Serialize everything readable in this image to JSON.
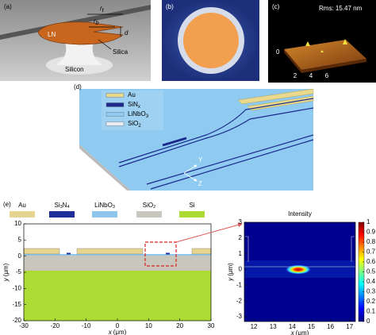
{
  "panels": {
    "a": {
      "label": "(a)",
      "top_radius": {
        "symbol": "r",
        "sub": "t"
      },
      "bottom_radius": {
        "symbol": "r",
        "sub": "b"
      },
      "thickness": "d",
      "disk": "LN",
      "pillar": "Silica",
      "substrate": "Silicon"
    },
    "b": {
      "label": "(b)"
    },
    "c": {
      "label": "(c)",
      "rms": "Rms: 15.47 nm",
      "xticks": [
        2,
        4,
        6
      ],
      "zticks": [
        0
      ]
    },
    "d": {
      "label": "(d)",
      "legend": [
        {
          "name": "Au",
          "color": "#e9d98c"
        },
        {
          "name": "SiN",
          "sub": "x",
          "color": "#1b2a8c"
        },
        {
          "name": "LiNbO",
          "sub": "3",
          "color": "#8fcaf0"
        },
        {
          "name": "SiO",
          "sub": "2",
          "color": "#e6ecf2"
        }
      ],
      "axes": [
        "Y",
        "Z"
      ]
    },
    "e": {
      "label": "(e)",
      "legend": [
        {
          "name": "Au",
          "color": "#e6d58e"
        },
        {
          "name": "Si",
          "sub": "3",
          "name2": "N",
          "sub2": "4",
          "color": "#1f2f99"
        },
        {
          "name": "LiNbO",
          "sub": "3",
          "color": "#8fc6ec"
        },
        {
          "name": "SiO",
          "sub": "2",
          "color": "#c9c7bd"
        },
        {
          "name": "Si",
          "color": "#acdc34"
        }
      ],
      "cross_section": {
        "xlabel": {
          "symbol": "x",
          "unit": "(μm)"
        },
        "ylabel": {
          "symbol": "y",
          "unit": "(μm)"
        },
        "xlim": [
          -30,
          30
        ],
        "ylim": [
          -20,
          10
        ],
        "xticks": [
          -30,
          -20,
          -10,
          0,
          10,
          20,
          30
        ],
        "yticks": [
          10,
          5,
          0,
          -5,
          -10,
          -15,
          -20
        ]
      },
      "mode": {
        "title": "Intensity",
        "xlabel": {
          "symbol": "x",
          "unit": "(μm)"
        },
        "ylabel": {
          "symbol": "y",
          "unit": "(μm)"
        },
        "xlim": [
          11.5,
          17.3
        ],
        "ylim": [
          -3.3,
          3
        ],
        "xticks": [
          12,
          13,
          14,
          15,
          16,
          17
        ],
        "yticks": [
          3,
          2,
          1,
          0,
          -1,
          -2,
          -3
        ],
        "colorbar_lim": [
          0,
          1
        ],
        "colorbar_ticks": [
          1,
          0.9,
          0.8,
          0.7,
          0.6,
          0.5,
          0.4,
          0.3,
          0.2,
          0.1,
          0
        ]
      }
    }
  }
}
